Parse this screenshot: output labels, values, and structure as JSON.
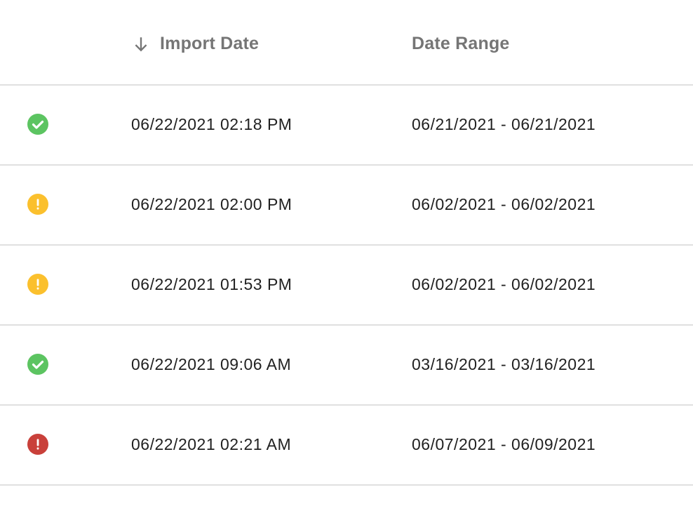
{
  "header": {
    "sort_icon": "arrow-down-icon",
    "import_date": "Import Date",
    "date_range": "Date Range"
  },
  "colors": {
    "success": "#5cc461",
    "warning": "#fbc02d",
    "error": "#c9403a"
  },
  "rows": [
    {
      "status": "success",
      "import_date": "06/22/2021 02:18 PM",
      "date_range": "06/21/2021 - 06/21/2021"
    },
    {
      "status": "warning",
      "import_date": "06/22/2021 02:00 PM",
      "date_range": "06/02/2021 - 06/02/2021"
    },
    {
      "status": "warning",
      "import_date": "06/22/2021 01:53 PM",
      "date_range": "06/02/2021 - 06/02/2021"
    },
    {
      "status": "success",
      "import_date": "06/22/2021 09:06 AM",
      "date_range": "03/16/2021 - 03/16/2021"
    },
    {
      "status": "error",
      "import_date": "06/22/2021 02:21 AM",
      "date_range": "06/07/2021 - 06/09/2021"
    }
  ]
}
